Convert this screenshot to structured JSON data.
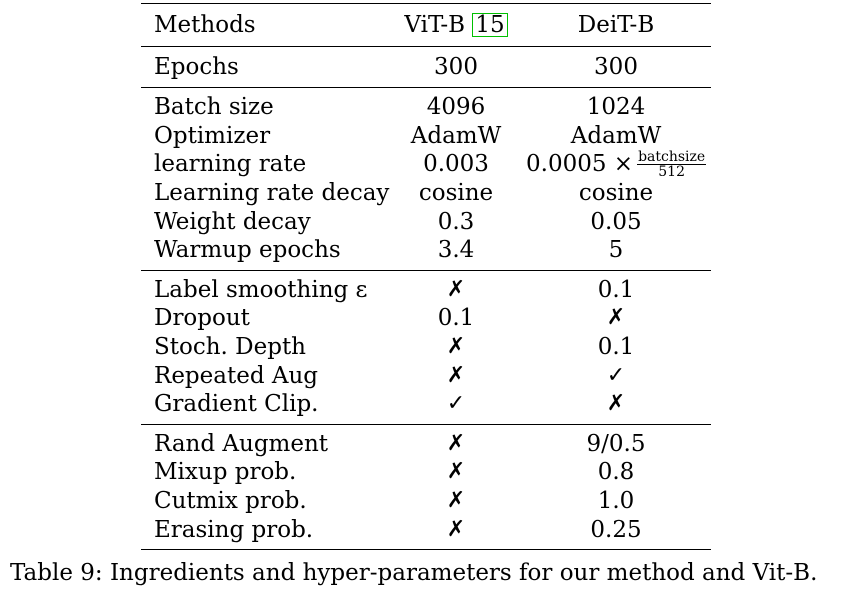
{
  "table": {
    "header": {
      "methods": "Methods",
      "vit": "ViT-B",
      "vit_cite": "15",
      "deit": "DeiT-B"
    },
    "epochs_row": {
      "label": "Epochs",
      "vit": "300",
      "deit": "300"
    },
    "optim_rows": [
      {
        "label": "Batch size",
        "vit": "4096",
        "deit": "1024"
      },
      {
        "label": "Optimizer",
        "vit": "AdamW",
        "deit": "AdamW"
      },
      {
        "label": "learning rate",
        "vit": "0.003",
        "deit_prefix": "0.0005 ×",
        "deit_num": "batchsize",
        "deit_den": "512"
      },
      {
        "label": "Learning rate decay",
        "vit": "cosine",
        "deit": "cosine"
      },
      {
        "label": "Weight decay",
        "vit": "0.3",
        "deit": "0.05"
      },
      {
        "label": "Warmup epochs",
        "vit": "3.4",
        "deit": "5"
      }
    ],
    "reg_rows": [
      {
        "label": "Label smoothing ε",
        "vit": "✗",
        "deit": "0.1"
      },
      {
        "label": "Dropout",
        "vit": "0.1",
        "deit": "✗"
      },
      {
        "label": "Stoch. Depth",
        "vit": "✗",
        "deit": "0.1"
      },
      {
        "label": "Repeated Aug",
        "vit": "✗",
        "deit": "✓"
      },
      {
        "label": "Gradient Clip.",
        "vit": "✓",
        "deit": "✗"
      }
    ],
    "aug_rows": [
      {
        "label": "Rand Augment",
        "vit": "✗",
        "deit": "9/0.5"
      },
      {
        "label": "Mixup prob.",
        "vit": "✗",
        "deit": "0.8"
      },
      {
        "label": "Cutmix prob.",
        "vit": "✗",
        "deit": "1.0"
      },
      {
        "label": "Erasing prob.",
        "vit": "✗",
        "deit": "0.25"
      }
    ]
  },
  "caption": "Table 9:  Ingredients and hyper-parameters for our method and Vit-B."
}
